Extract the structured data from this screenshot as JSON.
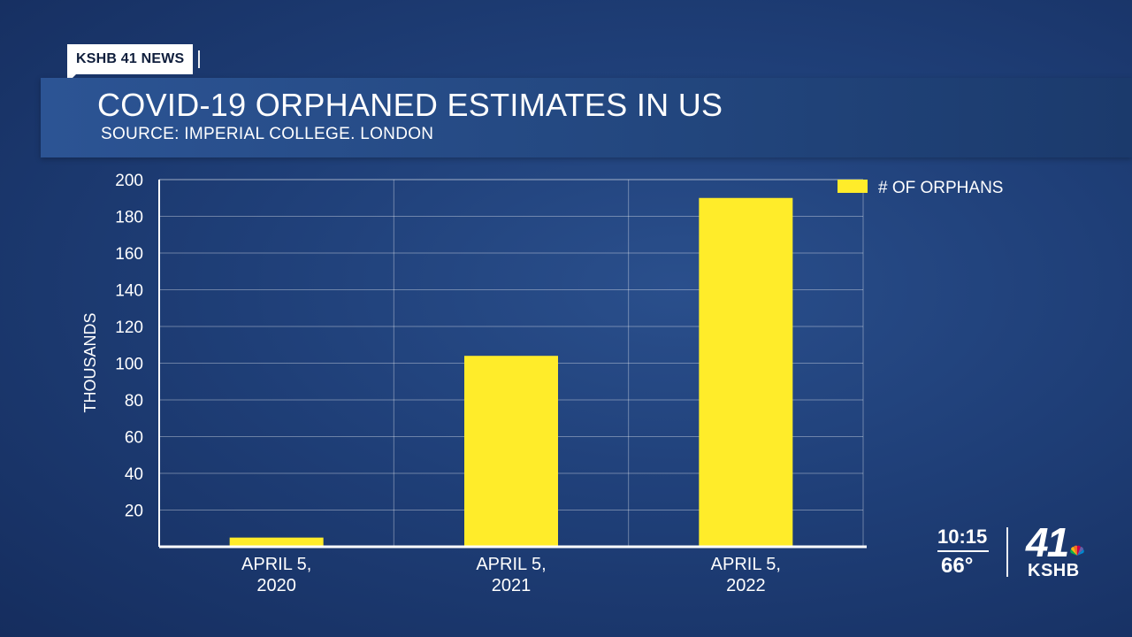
{
  "station_bug": {
    "label": "KSHB 41 NEWS"
  },
  "header": {
    "title": "COVID-19 ORPHANED ESTIMATES IN US",
    "source": "SOURCE:  IMPERIAL COLLEGE. LONDON"
  },
  "chart_data": {
    "type": "bar",
    "categories": [
      "APRIL 5,\n2020",
      "APRIL 5,\n2021",
      "APRIL 5,\n2022"
    ],
    "series": [
      {
        "name": "# OF ORPHANS",
        "values": [
          5,
          104,
          190
        ],
        "color": "#ffec2a"
      }
    ],
    "ylabel": "THOUSANDS",
    "ylim": [
      0,
      200
    ],
    "yticks": [
      20,
      40,
      60,
      80,
      100,
      120,
      140,
      160,
      180,
      200
    ],
    "grid": true,
    "legend": "top-right"
  },
  "clock": {
    "time": "10:15",
    "temperature": "66°"
  },
  "logo": {
    "number": "41",
    "call_letters": "KSHB",
    "icon": "peacock-icon"
  }
}
